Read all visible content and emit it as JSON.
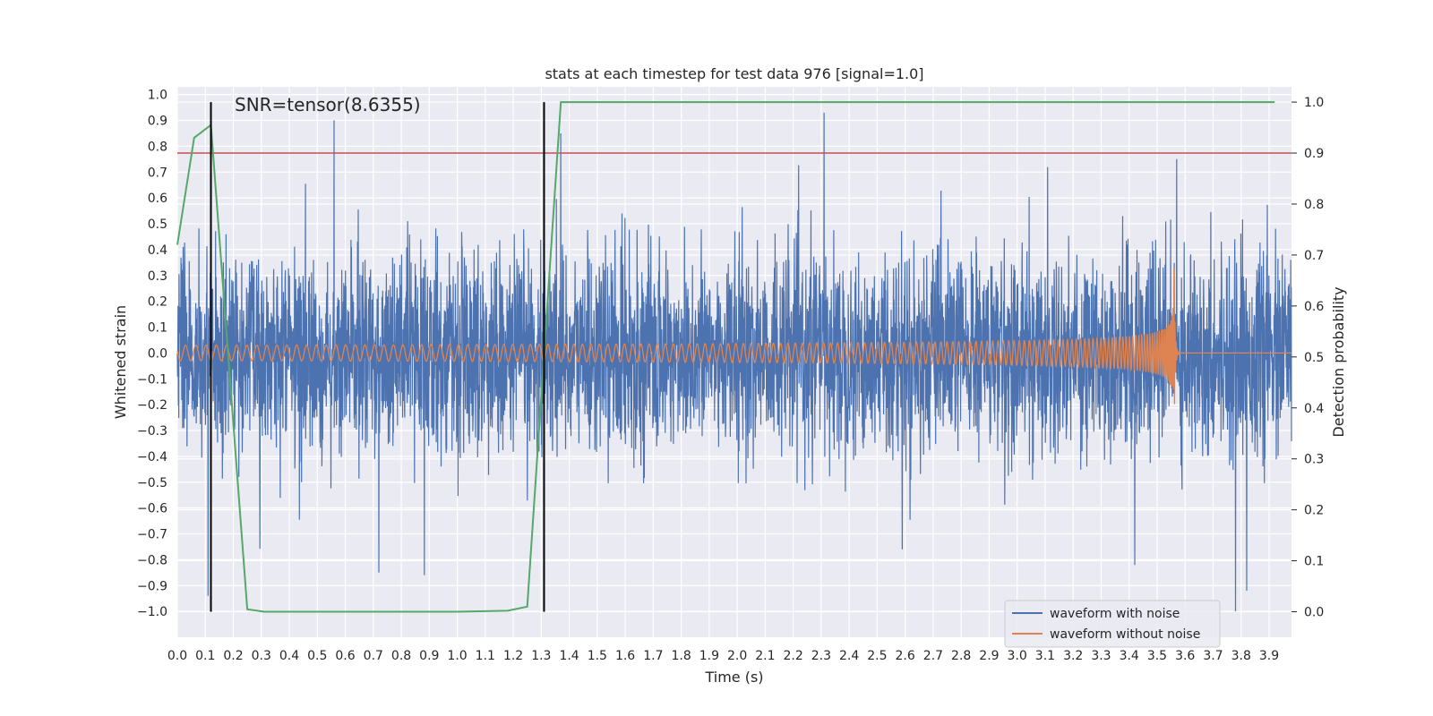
{
  "chart_data": {
    "type": "line",
    "title": "stats at each timestep for test data 976 [signal=1.0]",
    "xlabel": "Time (s)",
    "ylabel": "Whitened strain",
    "y2label": "Detection probability",
    "annotation": "SNR=tensor(8.6355)",
    "xlim": [
      0.0,
      3.98
    ],
    "ylim": [
      -1.1,
      1.03
    ],
    "y2lim": [
      -0.05,
      1.03
    ],
    "x_ticks": [
      "0.0",
      "0.1",
      "0.2",
      "0.3",
      "0.4",
      "0.5",
      "0.6",
      "0.7",
      "0.8",
      "0.9",
      "1.0",
      "1.1",
      "1.2",
      "1.3",
      "1.4",
      "1.5",
      "1.6",
      "1.7",
      "1.8",
      "1.9",
      "2.0",
      "2.1",
      "2.2",
      "2.3",
      "2.4",
      "2.5",
      "2.6",
      "2.7",
      "2.8",
      "2.9",
      "3.0",
      "3.1",
      "3.2",
      "3.3",
      "3.4",
      "3.5",
      "3.6",
      "3.7",
      "3.8",
      "3.9"
    ],
    "y_ticks": [
      "1.0",
      "0.9",
      "0.8",
      "0.7",
      "0.6",
      "0.5",
      "0.4",
      "0.3",
      "0.2",
      "0.1",
      "0.0",
      "−0.1",
      "−0.2",
      "−0.3",
      "−0.4",
      "−0.5",
      "−0.6",
      "−0.7",
      "−0.8",
      "−0.9",
      "−1.0"
    ],
    "y2_ticks": [
      "1.0",
      "0.9",
      "0.8",
      "0.7",
      "0.6",
      "0.5",
      "0.4",
      "0.3",
      "0.2",
      "0.1",
      "0.0"
    ],
    "threshold_y2": 0.9,
    "vertical_lines_x": [
      0.12,
      1.31
    ],
    "legend": [
      {
        "label": "waveform with noise",
        "color": "#4c72b0"
      },
      {
        "label": "waveform without noise",
        "color": "#dd8452"
      }
    ],
    "series": [
      {
        "name": "waveform with noise",
        "axis": "left",
        "color": "#4c72b0",
        "description": "whitened noisy strain, approx. uniform amplitude |y| up to ~0.9",
        "sample_peaks": {
          "x": [
            0.11,
            0.56,
            0.72,
            1.37,
            2.31,
            2.59,
            3.42,
            3.57,
            3.78,
            3.82
          ],
          "y": [
            -0.94,
            0.9,
            -0.85,
            0.85,
            0.93,
            -0.76,
            -0.82,
            0.75,
            -1.0,
            -0.92
          ]
        }
      },
      {
        "name": "waveform without noise",
        "axis": "left",
        "color": "#dd8452",
        "description": "chirp signal, amplitude ~0.03 growing to ~0.34 at merger, then ~0",
        "chirp": {
          "t_merger": 3.56,
          "start_amplitude": 0.03,
          "peak_amplitude": 0.34,
          "start_frequency": 27
        }
      },
      {
        "name": "detection probability",
        "axis": "right",
        "color": "#55a868",
        "x": [
          0.0,
          0.06,
          0.12,
          0.25,
          0.31,
          0.5,
          1.0,
          1.18,
          1.25,
          1.37,
          3.92
        ],
        "y": [
          0.72,
          0.93,
          0.955,
          0.005,
          0.0,
          0.0,
          0.0,
          0.002,
          0.01,
          1.0,
          1.0
        ]
      }
    ]
  }
}
